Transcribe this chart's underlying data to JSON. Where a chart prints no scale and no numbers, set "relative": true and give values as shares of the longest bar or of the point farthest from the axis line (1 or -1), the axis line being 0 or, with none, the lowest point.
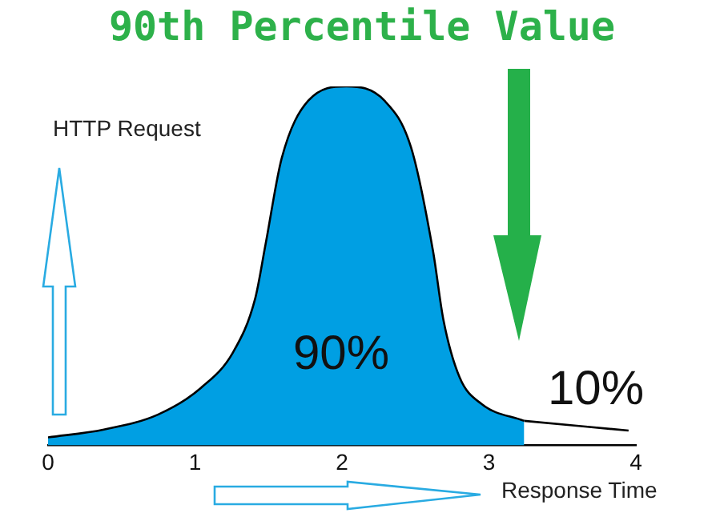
{
  "chart_data": {
    "type": "area",
    "title": "90th Percentile Value",
    "xlabel": "Response Time",
    "ylabel": "HTTP Request",
    "relative": true,
    "xlim": [
      0,
      4
    ],
    "xticks": [
      0,
      1,
      2,
      3,
      4
    ],
    "series": [
      {
        "type": "area",
        "color": "#009fe3",
        "x": [
          0,
          0.38,
          0.75,
          1.04,
          1.26,
          1.41,
          1.48,
          1.59,
          1.77,
          2.03,
          2.29,
          2.47,
          2.62,
          2.69,
          2.8,
          2.95,
          3.24
        ],
        "values": [
          0.022,
          0.044,
          0.086,
          0.16,
          0.26,
          0.41,
          0.56,
          0.8,
          0.96,
          1,
          0.96,
          0.83,
          0.54,
          0.35,
          0.19,
          0.115,
          0.068
        ]
      },
      {
        "type": "line",
        "color": "#000000",
        "x": [
          3.24,
          3.95
        ],
        "values": [
          0.068,
          0.041
        ]
      }
    ],
    "annotations": [
      "90%",
      "10%"
    ]
  }
}
